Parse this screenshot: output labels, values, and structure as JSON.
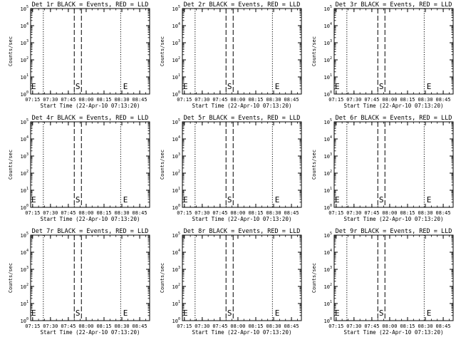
{
  "chart_data": {
    "type": "line",
    "layout": "3x3 grid",
    "shared": {
      "xlabel": "Start Time (22-Apr-10 07:13:20)",
      "ylabel": "Counts/sec",
      "xtick_labels": [
        "07:15",
        "07:30",
        "07:45",
        "08:00",
        "08:15",
        "08:30",
        "08:45"
      ],
      "xtick_times": [
        "07:15",
        "07:30",
        "07:45",
        "08:00",
        "08:15",
        "08:30",
        "08:45"
      ],
      "x_range": [
        "07:13:20",
        "08:53:20"
      ],
      "yscale": "log",
      "ylim": [
        1,
        100000
      ],
      "ytick_exponents": [
        0,
        1,
        2,
        3,
        4,
        5
      ],
      "ytick_base": "10",
      "grid": false
    },
    "panels": [
      {
        "title": "Det 1r BLACK = Events, RED = LLD",
        "markers": {
          "E_left": "07:13:20",
          "dashed": [
            "07:50",
            "07:56"
          ],
          "S": "07:53",
          "dotted": [
            "07:24",
            "08:29"
          ],
          "E_right": "08:33"
        }
      },
      {
        "title": "Det 2r BLACK = Events, RED = LLD",
        "markers": {
          "E_left": "07:13:20",
          "dashed": [
            "07:50",
            "07:56"
          ],
          "S": "07:53",
          "dotted": [
            "07:24",
            "08:29"
          ],
          "E_right": "08:33"
        }
      },
      {
        "title": "Det 3r BLACK = Events, RED = LLD",
        "markers": {
          "E_left": "07:13:20",
          "dashed": [
            "07:50",
            "07:56"
          ],
          "S": "07:53",
          "dotted": [
            "07:24",
            "08:29"
          ],
          "E_right": "08:33"
        }
      },
      {
        "title": "Det 4r BLACK = Events, RED = LLD",
        "markers": {
          "E_left": "07:13:20",
          "dashed": [
            "07:50",
            "07:56"
          ],
          "S": "07:53",
          "dotted": [
            "07:24",
            "08:29"
          ],
          "E_right": "08:33"
        }
      },
      {
        "title": "Det 5r BLACK = Events, RED = LLD",
        "markers": {
          "E_left": "07:13:20",
          "dashed": [
            "07:50",
            "07:56"
          ],
          "S": "07:53",
          "dotted": [
            "07:24",
            "08:29"
          ],
          "E_right": "08:33"
        }
      },
      {
        "title": "Det 6r BLACK = Events, RED = LLD",
        "markers": {
          "E_left": "07:13:20",
          "dashed": [
            "07:50",
            "07:56"
          ],
          "S": "07:53",
          "dotted": [
            "07:24",
            "08:29"
          ],
          "E_right": "08:33"
        }
      },
      {
        "title": "Det 7r BLACK = Events, RED = LLD",
        "markers": {
          "E_left": "07:13:20",
          "dashed": [
            "07:50",
            "07:56"
          ],
          "S": "07:53",
          "dotted": [
            "07:24",
            "08:29"
          ],
          "E_right": "08:33"
        }
      },
      {
        "title": "Det 8r BLACK = Events, RED = LLD",
        "markers": {
          "E_left": "07:13:20",
          "dashed": [
            "07:50",
            "07:56"
          ],
          "S": "07:53",
          "dotted": [
            "07:24",
            "08:29"
          ],
          "E_right": "08:33"
        }
      },
      {
        "title": "Det 9r BLACK = Events, RED = LLD",
        "markers": {
          "E_left": "07:13:20",
          "dashed": [
            "07:50",
            "07:56"
          ],
          "S": "07:53",
          "dotted": [
            "07:24",
            "08:29"
          ],
          "E_right": "08:33"
        }
      }
    ],
    "marker_labels": {
      "start": "S",
      "end": "E"
    },
    "colors": {
      "axes": "#000000",
      "background": "#ffffff"
    }
  }
}
